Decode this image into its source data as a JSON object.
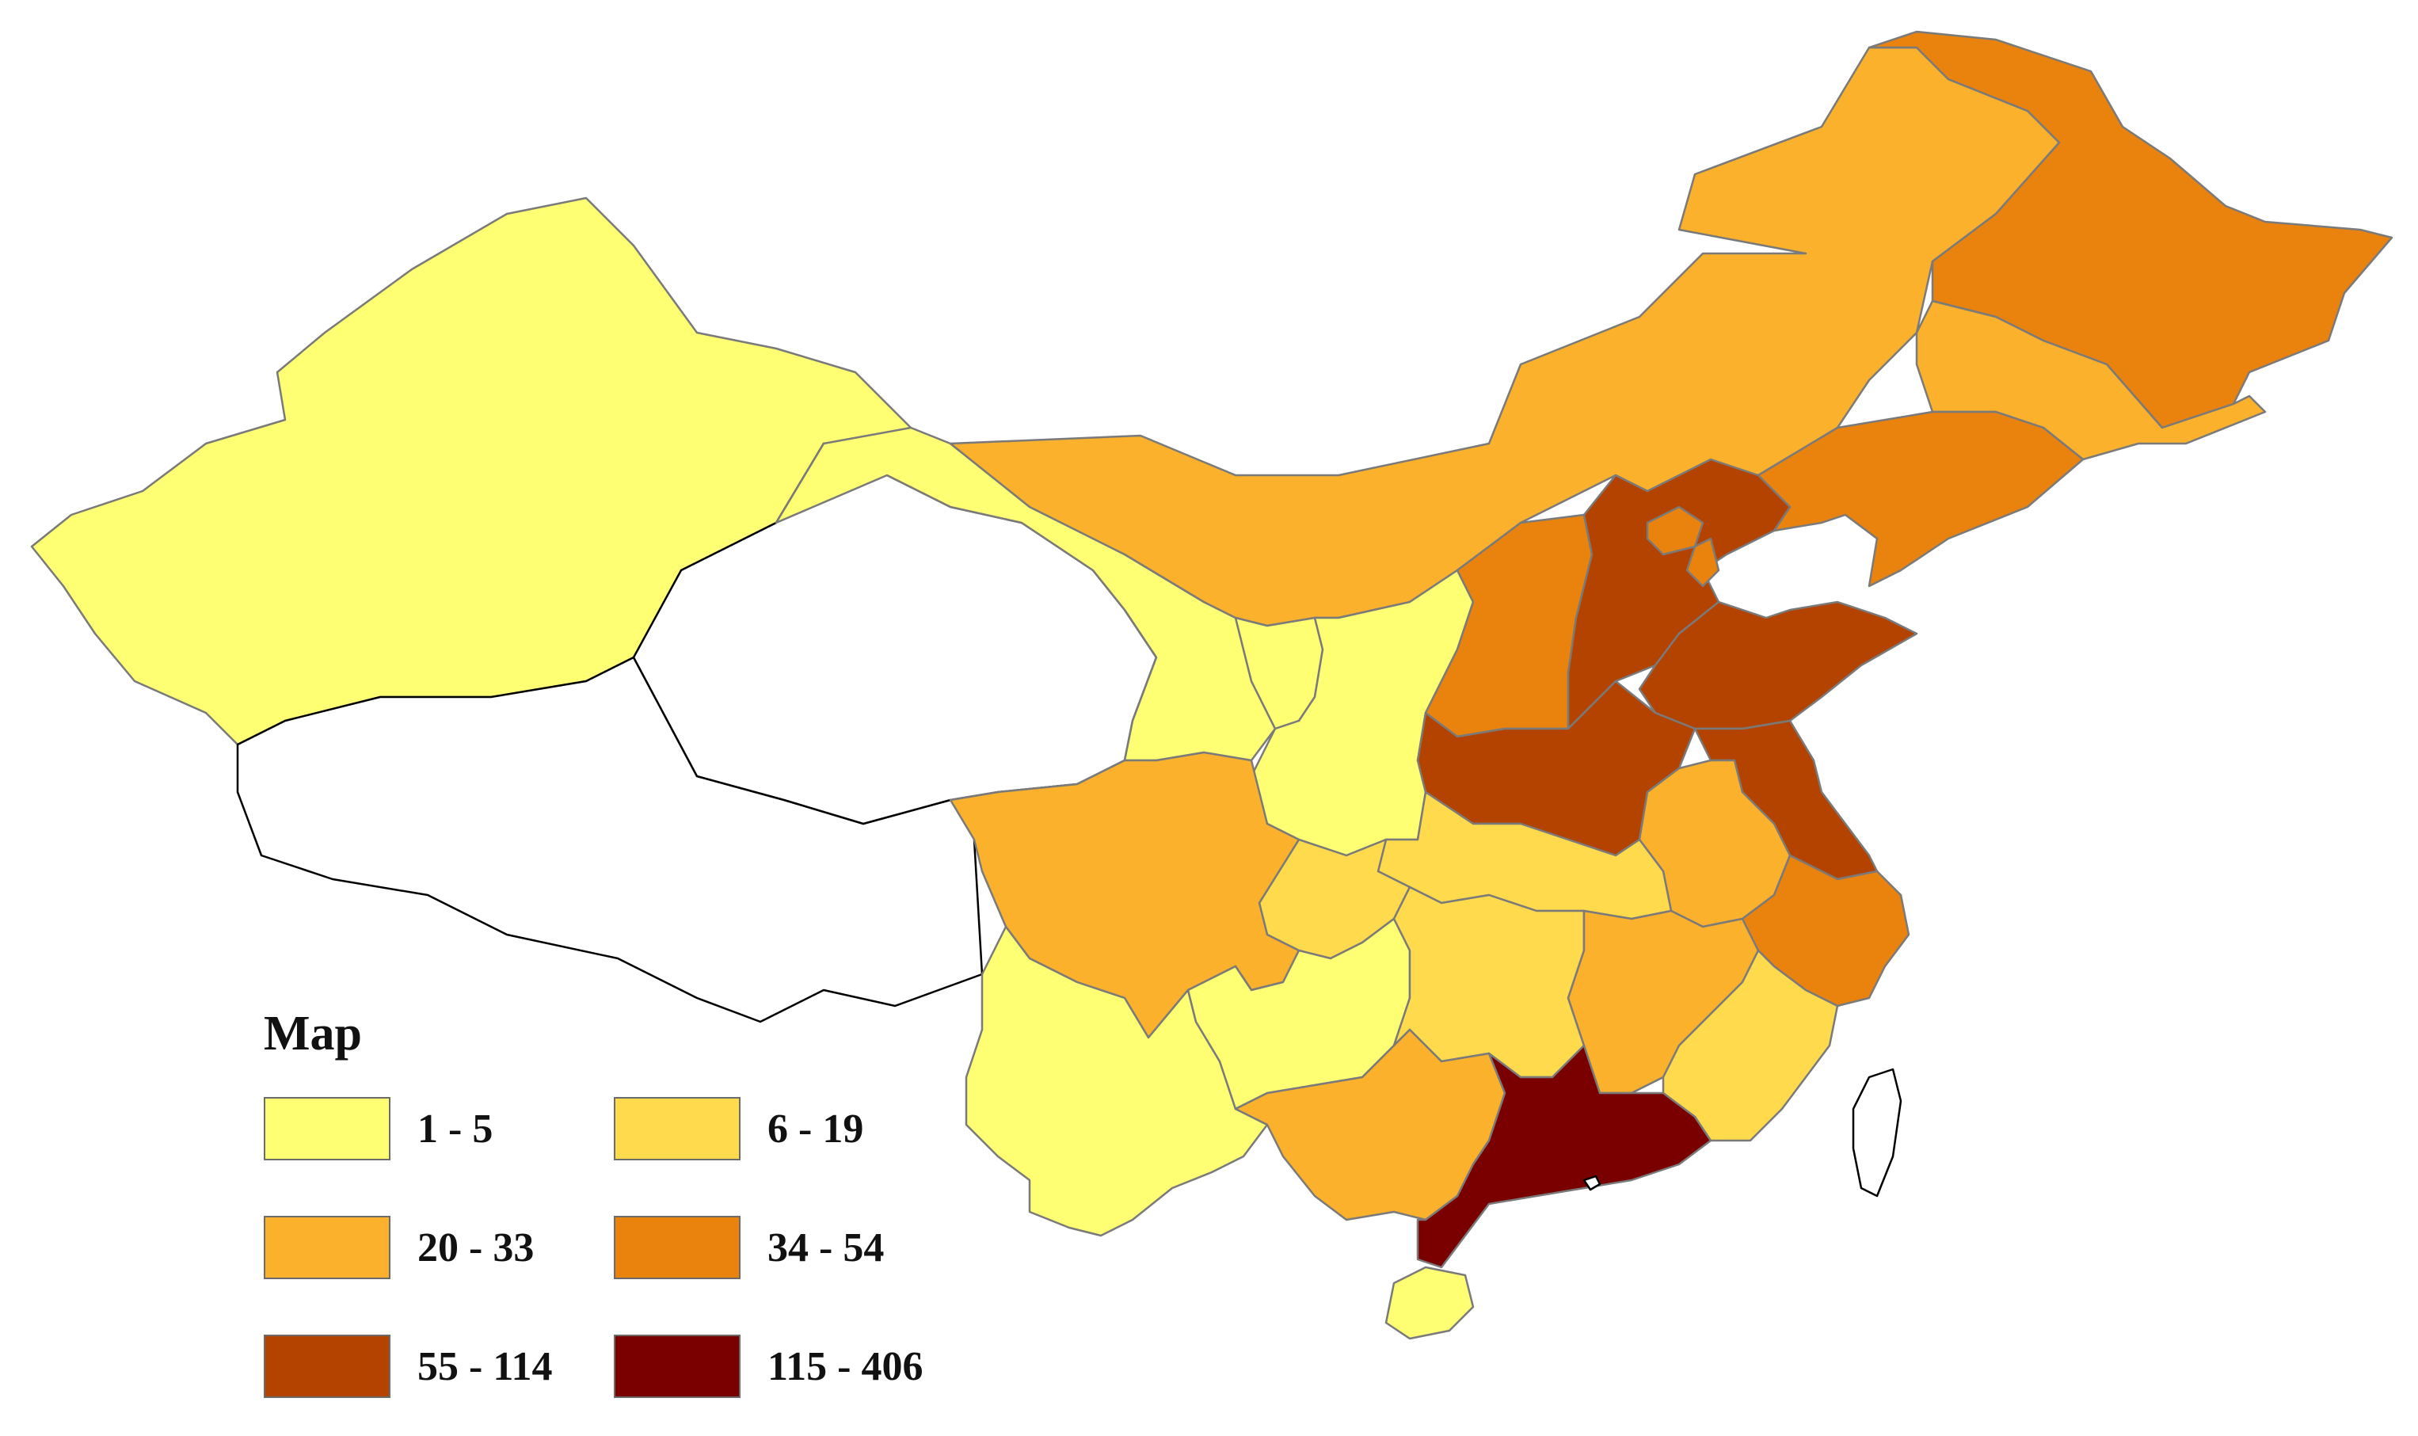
{
  "legend": {
    "title": "Map",
    "classes": [
      {
        "label": "1 - 5",
        "color": "#ffff73"
      },
      {
        "label": "6 - 19",
        "color": "#ffda4d"
      },
      {
        "label": "20 - 33",
        "color": "#fbb12b"
      },
      {
        "label": "34 - 54",
        "color": "#ea830e"
      },
      {
        "label": "55 - 114",
        "color": "#b54300"
      },
      {
        "label": "115 - 406",
        "color": "#7a0000"
      }
    ]
  },
  "no_data_color": "#ffffff",
  "regions": [
    {
      "name": "xinjiang",
      "class": 0
    },
    {
      "name": "tibet",
      "class": -1
    },
    {
      "name": "qinghai",
      "class": -1
    },
    {
      "name": "gansu",
      "class": 0
    },
    {
      "name": "inner-mongolia",
      "class": 2
    },
    {
      "name": "heilongjiang",
      "class": 3
    },
    {
      "name": "jilin",
      "class": 2
    },
    {
      "name": "liaoning",
      "class": 3
    },
    {
      "name": "ningxia",
      "class": 0
    },
    {
      "name": "shaanxi",
      "class": 0
    },
    {
      "name": "shanxi",
      "class": 3
    },
    {
      "name": "hebei",
      "class": 4
    },
    {
      "name": "beijing",
      "class": 3
    },
    {
      "name": "tianjin",
      "class": 3
    },
    {
      "name": "shandong",
      "class": 4
    },
    {
      "name": "henan",
      "class": 4
    },
    {
      "name": "jiangsu",
      "class": 4
    },
    {
      "name": "anhui",
      "class": 2
    },
    {
      "name": "hubei",
      "class": 1
    },
    {
      "name": "chongqing",
      "class": 1
    },
    {
      "name": "sichuan",
      "class": 2
    },
    {
      "name": "yunnan",
      "class": 0
    },
    {
      "name": "guizhou",
      "class": 0
    },
    {
      "name": "hunan",
      "class": 1
    },
    {
      "name": "jiangxi",
      "class": 2
    },
    {
      "name": "zhejiang",
      "class": 3
    },
    {
      "name": "fujian",
      "class": 1
    },
    {
      "name": "guangxi",
      "class": 2
    },
    {
      "name": "guangdong",
      "class": 5
    },
    {
      "name": "hainan",
      "class": 0
    },
    {
      "name": "taiwan",
      "class": -1
    },
    {
      "name": "hong-kong",
      "class": -1
    }
  ]
}
